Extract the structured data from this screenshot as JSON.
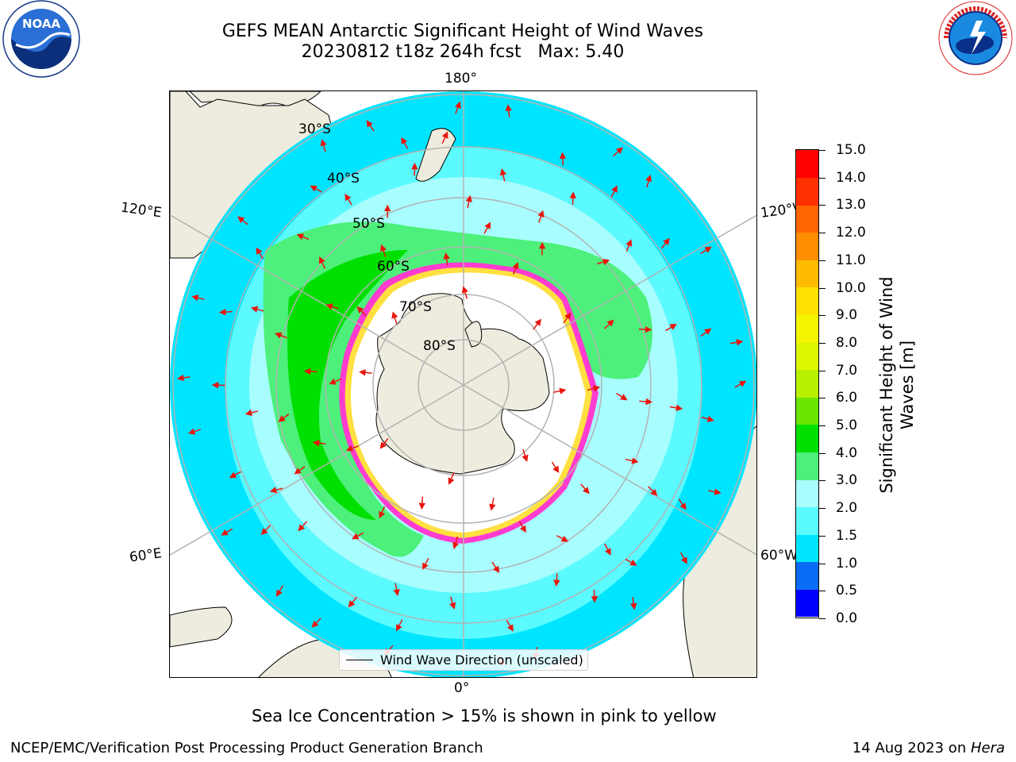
{
  "title": {
    "line1": "GEFS MEAN Antarctic Significant Height of Wind Waves",
    "line2": "20230812 t18z 264h fcst   Max: 5.40"
  },
  "map": {
    "longitude_labels": {
      "top": "180°",
      "bottom": "0°",
      "upper_left": "120°E",
      "upper_right": "120°W",
      "lower_left": "60°E",
      "lower_right": "60°W"
    },
    "latitude_labels": [
      "30°S",
      "40°S",
      "50°S",
      "60°S",
      "70°S",
      "80°S"
    ],
    "legend_label": "Wind Wave Direction (unscaled)",
    "colors": {
      "land": "#eeecde",
      "ice_edge_pink": "#ff3ccf",
      "ice_edge_yellow": "#ffe040",
      "arrow": "#e8160c",
      "gridline": "#b3b3b3"
    }
  },
  "colorbar": {
    "title": "Significant Height of Wind Waves [m]",
    "ticks": [
      "0.0",
      "0.5",
      "1.0",
      "1.5",
      "2.0",
      "3.0",
      "4.0",
      "5.0",
      "6.0",
      "7.0",
      "8.0",
      "9.0",
      "10.0",
      "11.0",
      "12.0",
      "13.0",
      "14.0",
      "15.0"
    ],
    "colors": [
      "#0000ff",
      "#0a6cf5",
      "#00e5ff",
      "#5afaff",
      "#a8fdfe",
      "#4cf07a",
      "#00e000",
      "#6ae600",
      "#b8f000",
      "#dcf500",
      "#f5f500",
      "#ffe000",
      "#ffbb00",
      "#ff8f00",
      "#ff6500",
      "#ff3000",
      "#ff0000"
    ]
  },
  "caption": "Sea Ice Concentration > 15% is shown in pink to yellow",
  "footer": {
    "left": "NCEP/EMC/Verification Post Processing Product Generation Branch",
    "right_prefix": "14 Aug 2023 on ",
    "right_machine": "Hera"
  },
  "logos": {
    "noaa_text": "NOAA",
    "nws_text": "NATIONAL WEATHER SERVICE"
  }
}
